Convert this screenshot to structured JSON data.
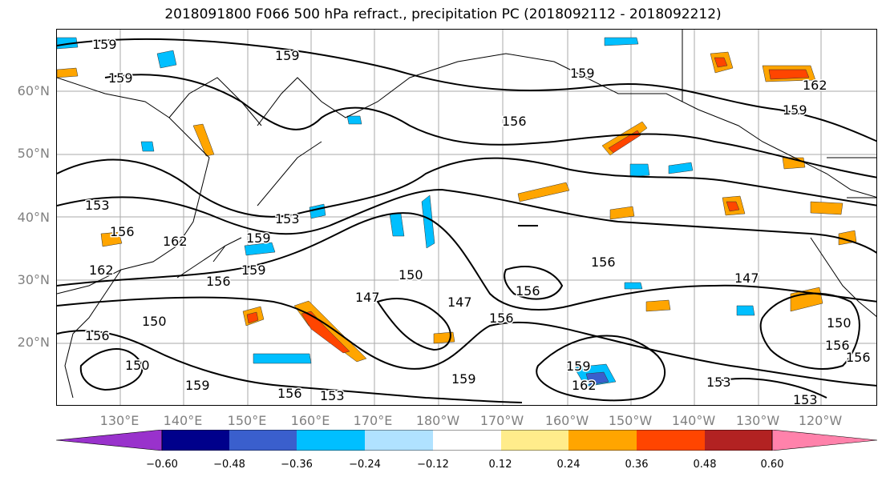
{
  "title": "2018091800 F066 500 hPa refract., precipitation PC (2018092112 - 2018092212)",
  "lat_labels": [
    "60°N",
    "50°N",
    "40°N",
    "30°N",
    "20°N"
  ],
  "lon_labels": [
    "130°E",
    "140°E",
    "150°E",
    "160°E",
    "170°E",
    "180°W",
    "170°W",
    "160°W",
    "150°W",
    "140°W",
    "130°W",
    "120°W"
  ],
  "contour_labels": [
    "159",
    "159",
    "159",
    "159",
    "159",
    "156",
    "153",
    "156",
    "162",
    "162",
    "159",
    "153",
    "156",
    "150",
    "150",
    "147",
    "147",
    "156",
    "156",
    "150",
    "156",
    "159",
    "159",
    "162",
    "153",
    "156",
    "153",
    "150",
    "156",
    "159",
    "156",
    "147",
    "162",
    "159",
    "156",
    "153"
  ],
  "colorbar": {
    "ticks": [
      "−0.60",
      "−0.48",
      "−0.36",
      "−0.24",
      "−0.12",
      "0.12",
      "0.24",
      "0.36",
      "0.48",
      "0.60"
    ],
    "colors": [
      "#9932cc",
      "#00008b",
      "#3a5fcd",
      "#00bfff",
      "#b0e2ff",
      "#ffffff",
      "#ffec8b",
      "#ffa500",
      "#ff4500",
      "#b22222",
      "#ff82ab"
    ]
  }
}
